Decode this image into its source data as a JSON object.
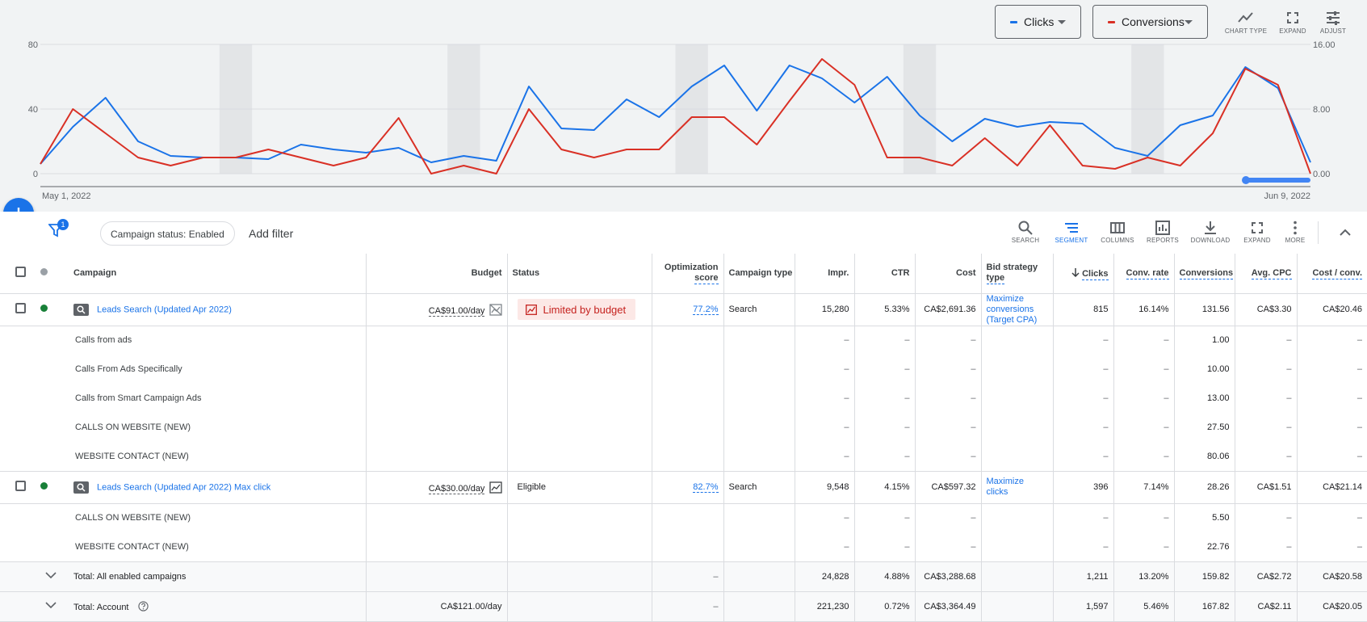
{
  "chart": {
    "metric_1": {
      "label": "Clicks",
      "color": "#1a73e8"
    },
    "metric_2": {
      "label": "Conversions",
      "color": "#d93025"
    },
    "tools": {
      "chart_type": "CHART TYPE",
      "expand": "EXPAND",
      "adjust": "ADJUST"
    },
    "left_ticks": [
      "80",
      "40",
      "0"
    ],
    "right_ticks": [
      "16.00",
      "8.00",
      "0.00"
    ],
    "date_start": "May 1, 2022",
    "date_end": "Jun 9, 2022"
  },
  "chart_data": {
    "type": "line",
    "x": [
      "May 1",
      "May 2",
      "May 3",
      "May 4",
      "May 5",
      "May 6",
      "May 7",
      "May 8",
      "May 9",
      "May 10",
      "May 11",
      "May 12",
      "May 13",
      "May 14",
      "May 15",
      "May 16",
      "May 17",
      "May 18",
      "May 19",
      "May 20",
      "May 21",
      "May 22",
      "May 23",
      "May 24",
      "May 25",
      "May 26",
      "May 27",
      "May 28",
      "May 29",
      "May 30",
      "May 31",
      "Jun 1",
      "Jun 2",
      "Jun 3",
      "Jun 4",
      "Jun 5",
      "Jun 6",
      "Jun 7",
      "Jun 8",
      "Jun 9"
    ],
    "series": [
      {
        "name": "Clicks",
        "axis": "left",
        "color": "#1a73e8",
        "values": [
          6,
          29,
          47,
          20,
          11,
          10,
          10,
          9,
          18,
          15,
          13,
          16,
          7,
          11,
          8,
          54,
          28,
          27,
          46,
          35,
          54,
          67,
          39,
          67,
          59,
          44,
          60,
          36,
          20,
          34,
          29,
          32,
          31,
          16,
          11,
          30,
          36,
          66,
          53,
          7
        ]
      },
      {
        "name": "Conversions",
        "axis": "right",
        "color": "#d93025",
        "values": [
          1.2,
          8.0,
          5.0,
          2.0,
          1.0,
          2.0,
          2.0,
          3.0,
          2.0,
          1.0,
          2.0,
          6.9,
          0.0,
          1.0,
          0.0,
          8.0,
          3.0,
          2.0,
          3.0,
          3.0,
          7.0,
          7.0,
          3.6,
          9.0,
          14.2,
          11.0,
          2.0,
          2.0,
          1.0,
          4.4,
          1.0,
          6.0,
          1.0,
          0.6,
          2.0,
          1.0,
          5.0,
          13.0,
          11.0,
          0.0
        ]
      }
    ],
    "ylim_left": [
      0,
      80
    ],
    "ylim_right": [
      0,
      16
    ],
    "grid": true
  },
  "toolbar": {
    "filter_count": "1",
    "chip": "Campaign status: Enabled",
    "add_filter": "Add filter",
    "tools": {
      "search": "SEARCH",
      "segment": "SEGMENT",
      "columns": "COLUMNS",
      "reports": "REPORTS",
      "download": "DOWNLOAD",
      "expand": "EXPAND",
      "more": "MORE"
    }
  },
  "table": {
    "headers": {
      "campaign": "Campaign",
      "budget": "Budget",
      "status": "Status",
      "opt_score_1": "Optimization",
      "opt_score_2": "score",
      "campaign_type": "Campaign type",
      "impr": "Impr.",
      "ctr": "CTR",
      "cost": "Cost",
      "bid_1": "Bid strategy",
      "bid_2": "type",
      "clicks": "Clicks",
      "conv_rate": "Conv. rate",
      "conversions": "Conversions",
      "avg_cpc": "Avg. CPC",
      "cost_conv": "Cost / conv."
    },
    "dash": "–",
    "campaigns": [
      {
        "name": "Leads Search (Updated Apr 2022)",
        "budget": "CA$91.00/day",
        "status": "Limited by budget",
        "opt_score": "77.2%",
        "type": "Search",
        "impr": "15,280",
        "ctr": "5.33%",
        "cost": "CA$2,691.36",
        "bid_strategy": "Maximize conversions (Target CPA)",
        "clicks": "815",
        "conv_rate": "16.14%",
        "conversions": "131.56",
        "avg_cpc": "CA$3.30",
        "cost_conv": "CA$20.46",
        "segments": [
          {
            "label": "Calls from ads",
            "conversions": "1.00"
          },
          {
            "label": "Calls From Ads Specifically",
            "conversions": "10.00"
          },
          {
            "label": "Calls from Smart Campaign Ads",
            "conversions": "13.00"
          },
          {
            "label": "CALLS ON WEBSITE (NEW)",
            "conversions": "27.50"
          },
          {
            "label": "WEBSITE CONTACT (NEW)",
            "conversions": "80.06"
          }
        ]
      },
      {
        "name": "Leads Search (Updated Apr 2022) Max click",
        "budget": "CA$30.00/day",
        "status": "Eligible",
        "opt_score": "82.7%",
        "type": "Search",
        "impr": "9,548",
        "ctr": "4.15%",
        "cost": "CA$597.32",
        "bid_strategy": "Maximize clicks",
        "clicks": "396",
        "conv_rate": "7.14%",
        "conversions": "28.26",
        "avg_cpc": "CA$1.51",
        "cost_conv": "CA$21.14",
        "segments": [
          {
            "label": "CALLS ON WEBSITE (NEW)",
            "conversions": "5.50"
          },
          {
            "label": "WEBSITE CONTACT (NEW)",
            "conversions": "22.76"
          }
        ]
      }
    ],
    "totals": [
      {
        "label": "Total: All enabled campaigns",
        "budget": "",
        "opt": "–",
        "impr": "24,828",
        "ctr": "4.88%",
        "cost": "CA$3,288.68",
        "clicks": "1,211",
        "conv_rate": "13.20%",
        "conversions": "159.82",
        "avg_cpc": "CA$2.72",
        "cost_conv": "CA$20.58"
      },
      {
        "label": "Total: Account",
        "budget": "CA$121.00/day",
        "opt": "–",
        "impr": "221,230",
        "ctr": "0.72%",
        "cost": "CA$3,364.49",
        "clicks": "1,597",
        "conv_rate": "5.46%",
        "conversions": "167.82",
        "avg_cpc": "CA$2.11",
        "cost_conv": "CA$20.05"
      }
    ]
  }
}
